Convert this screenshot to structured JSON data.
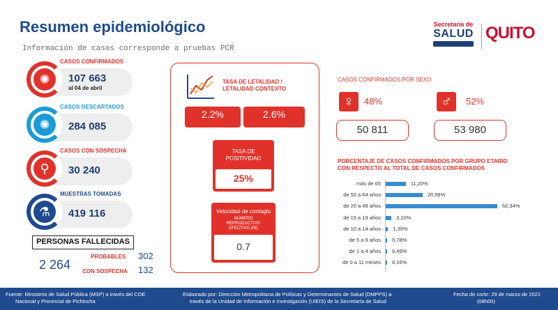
{
  "header": {
    "title": "Resumen epidemiológico",
    "subtitle": "Información de casos corresponde a pruebas PCR"
  },
  "logos": {
    "salud_line1": "Secretaría de",
    "salud_line2": "SALUD",
    "quito": "QUITO"
  },
  "stats": {
    "confirmados": {
      "label": "CASOS CONFIRMADOS",
      "value": "107 663",
      "note": "al 04 de abril",
      "icon": "virus-icon"
    },
    "descartados": {
      "label": "CASOS DESCARTADOS",
      "value": "284 085",
      "icon": "virus-icon"
    },
    "sospecha": {
      "label": "CASOS CON SOSPECHA",
      "value": "30 240",
      "icon": "search-virus-icon"
    },
    "muestras": {
      "label": "MUESTRAS TOMADAS",
      "value": "419 116",
      "icon": "test-tube-icon"
    }
  },
  "fallecidas": {
    "title": "PERSONAS FALLECIDAS",
    "total": "2 264",
    "probables_label": "PROBABLES",
    "probables_value": "302",
    "sospecha_label": "CON SOSPECHA",
    "sospecha_value": "132"
  },
  "letalidad": {
    "title_line1": "TASA DE LETALIDAD /",
    "title_line2": "LETALIDAD CONTEXTO",
    "value1": "2.2%",
    "value2": "2.6%"
  },
  "positividad": {
    "title_line1": "TASA DE",
    "title_line2": "POSITIVIDAD",
    "value": "25%"
  },
  "contagio": {
    "title": "Velocidad de contagio",
    "sub_line1": "NÚMERO",
    "sub_line2": "REPRODUCTIVO",
    "sub_line3": "EFECTIVO (Rt)",
    "value": "0.7"
  },
  "sexo": {
    "title": "CASOS CONFIRMADOS POR SEXO",
    "female_pct": "48%",
    "male_pct": "52%",
    "female_value": "50 811",
    "male_value": "53 980",
    "female_icon": "female-icon",
    "male_icon": "male-icon"
  },
  "edad": {
    "title_line1": "PORCENTAJE DE CASOS CONFIRMADOS POR GRUPO ETARIO",
    "title_line2": "CON RESPECTO AL TOTAL DE CASOS CONFIRMADOS"
  },
  "chart_data": {
    "type": "bar",
    "orientation": "horizontal",
    "categories": [
      "más de 65",
      "de 50 a 64 años",
      "de 20 a 49 años",
      "de 15 a 19 años",
      "de 10 a 14 años",
      "de 5 a 9 años",
      "de 1 a 4 años",
      "de 0 a 11 meses"
    ],
    "values": [
      11.2,
      20.58,
      62.34,
      3.1,
      1.35,
      0.78,
      0.49,
      0.16
    ],
    "value_labels": [
      "11,20%",
      "20,58%",
      "62,34%",
      "3,10%",
      "1,35%",
      "0,78%",
      "0,49%",
      "0,16%"
    ],
    "colors": {
      "bar": "#3b8bd0"
    }
  },
  "footer": {
    "fuente_line1": "Fuente: Ministerio de Salud Pública (MSP) a través del COE",
    "fuente_line2": "Nacional y Provincial de Pichincha",
    "elaborado_line1": "Elaborado por: Dirección Metropolitana de Políticas y Determinantes de Salud (DMPPS) a",
    "elaborado_line2": "través de la Unidad de Información e Investigación (UIEIS) de la Secretaría de Salud",
    "corte_line1": "Fecha de corte: 29 de marzo de 2021",
    "corte_line2": "(08h00)"
  },
  "colors": {
    "red": "#e0322a",
    "blue": "#1a9bd7",
    "navy": "#1f4a8e"
  }
}
